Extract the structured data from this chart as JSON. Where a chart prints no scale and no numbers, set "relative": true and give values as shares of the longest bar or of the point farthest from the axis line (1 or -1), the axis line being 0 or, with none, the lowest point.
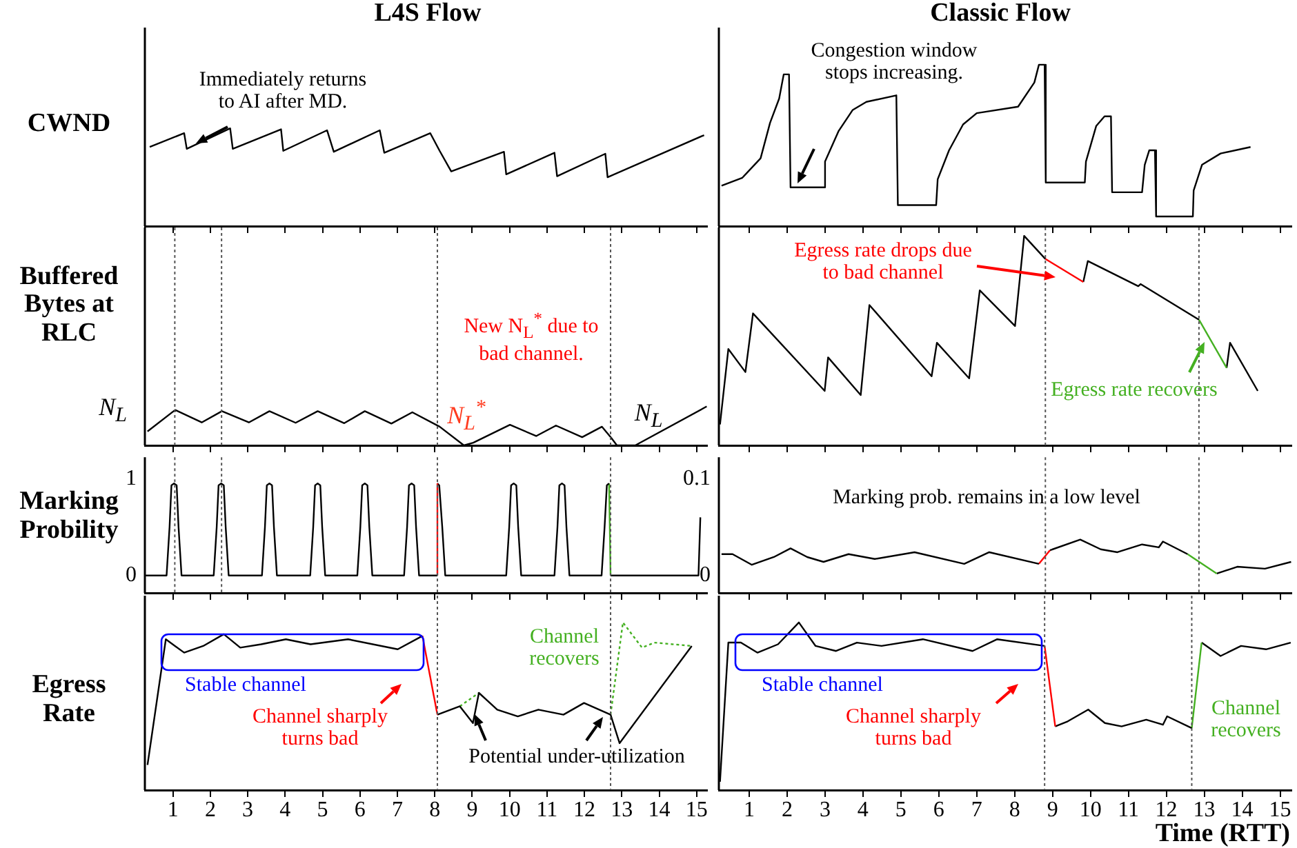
{
  "chart_data": [
    {
      "type": "line",
      "title": "L4S Flow",
      "ylabel": "CWND",
      "relative": true,
      "marker": "none",
      "tick_labels": false,
      "xlim": [
        0.25,
        15.3
      ],
      "xticks": [
        1,
        2,
        3,
        4,
        5,
        6,
        7,
        8,
        9,
        10,
        11,
        12,
        13,
        14,
        15
      ],
      "annotations": [
        "Immediately returns to AI  after MD."
      ],
      "series": [
        {
          "color": "#000000",
          "x": [
            0.38,
            1.3,
            1.37,
            2.53,
            2.6,
            3.89,
            3.95,
            5.12,
            5.3,
            6.53,
            6.65,
            7.88,
            8.13,
            8.44,
            9.85,
            9.91,
            11.2,
            11.27,
            12.56,
            12.62,
            15.2
          ],
          "values": [
            0.81,
            0.95,
            0.79,
            1.0,
            0.79,
            0.99,
            0.77,
            0.98,
            0.76,
            0.98,
            0.75,
            0.95,
            0.77,
            0.56,
            0.76,
            0.53,
            0.75,
            0.51,
            0.74,
            0.5,
            0.93
          ]
        }
      ]
    },
    {
      "type": "line",
      "title": "Classic Flow",
      "relative": true,
      "marker": "none",
      "tick_labels": false,
      "xlim": [
        0.2,
        15.3
      ],
      "xticks": [
        1,
        2,
        3,
        4,
        5,
        6,
        7,
        8,
        9,
        10,
        11,
        12,
        13,
        14,
        15
      ],
      "annotations": [
        "Congestion window stops increasing."
      ],
      "series": [
        {
          "color": "#000000",
          "x": [
            0.27,
            0.82,
            1.3,
            1.55,
            1.79,
            1.91,
            2.05,
            2.09,
            2.97,
            3.0,
            3.36,
            3.73,
            4.09,
            4.88,
            4.92,
            5.93,
            5.97,
            6.27,
            6.64,
            7.0,
            8.09,
            8.52,
            8.64,
            8.79,
            8.82,
            9.85,
            9.88,
            10.15,
            10.37,
            10.54,
            10.57,
            11.36,
            11.43,
            11.55,
            11.7,
            11.73,
            12.7,
            12.72,
            12.94,
            13.43,
            14.22
          ],
          "values": [
            0.25,
            0.3,
            0.42,
            0.64,
            0.79,
            0.94,
            0.94,
            0.24,
            0.24,
            0.4,
            0.59,
            0.72,
            0.77,
            0.81,
            0.13,
            0.13,
            0.29,
            0.47,
            0.63,
            0.7,
            0.74,
            0.89,
            1.0,
            1.0,
            0.27,
            0.27,
            0.4,
            0.62,
            0.68,
            0.68,
            0.21,
            0.21,
            0.38,
            0.47,
            0.47,
            0.06,
            0.06,
            0.22,
            0.38,
            0.45,
            0.49
          ]
        }
      ]
    },
    {
      "type": "line",
      "ylabel": "Buffered Bytes at RLC",
      "relative": true,
      "marker": "none",
      "tick_labels": false,
      "xlim": [
        0.25,
        15.3
      ],
      "xticks": [
        1,
        2,
        3,
        4,
        5,
        6,
        7,
        8,
        9,
        10,
        11,
        12,
        13,
        14,
        15
      ],
      "annotations": [
        "N$_{L}$",
        "New N$_{L}$$^{*}$ due to bad channel.",
        "N$_{L}$$^{*}$",
        "N$_{L}$"
      ],
      "ref_lines": [
        {
          "axis": "x",
          "value": 1.05,
          "color": "#555555",
          "line_style": "dotted"
        },
        {
          "axis": "x",
          "value": 2.3,
          "color": "#555555",
          "line_style": "dotted"
        },
        {
          "axis": "x",
          "value": 8.07,
          "color": "#555555",
          "line_style": "dotted"
        },
        {
          "axis": "x",
          "value": 12.7,
          "color": "#555555",
          "line_style": "dotted"
        }
      ],
      "series": [
        {
          "color": "#000000",
          "x": [
            0.32,
            1.06,
            1.77,
            2.31,
            3.03,
            3.58,
            4.28,
            4.87,
            5.58,
            6.13,
            6.84,
            7.4,
            8.13,
            8.78,
            9.03,
            10.01,
            10.71,
            11.24,
            11.94,
            12.47,
            12.72,
            12.87,
            13.36,
            15.27
          ],
          "values": [
            0.36,
            0.91,
            0.59,
            0.88,
            0.59,
            0.88,
            0.58,
            0.88,
            0.57,
            0.88,
            0.56,
            0.85,
            0.48,
            0,
            0.07,
            0.53,
            0.24,
            0.51,
            0.21,
            0.48,
            0.19,
            0,
            0,
            1.0
          ]
        }
      ]
    },
    {
      "type": "line",
      "relative": true,
      "marker": "none",
      "tick_labels": false,
      "xlim": [
        0.2,
        15.3
      ],
      "xticks": [
        1,
        2,
        3,
        4,
        5,
        6,
        7,
        8,
        9,
        10,
        11,
        12,
        13,
        14,
        15
      ],
      "annotations": [
        "Egress rate drops due to bad channel",
        "Egress rate recovers"
      ],
      "ref_lines": [
        {
          "axis": "x",
          "value": 8.81,
          "color": "#555555",
          "line_style": "dotted"
        },
        {
          "axis": "x",
          "value": 12.86,
          "color": "#555555",
          "line_style": "dotted"
        }
      ],
      "series": [
        {
          "color": "#000000",
          "x": [
            0.23,
            0.45,
            0.9,
            1.1,
            2.99,
            3.08,
            3.94,
            4.17,
            5.81,
            5.95,
            6.8,
            7.08,
            8.01,
            8.25,
            8.81
          ],
          "values": [
            0.1,
            0.46,
            0.35,
            0.63,
            0.26,
            0.42,
            0.24,
            0.67,
            0.33,
            0.49,
            0.32,
            0.74,
            0.57,
            1.0,
            0.89
          ]
        },
        {
          "color": "#ff0000",
          "x": [
            8.81,
            9.81
          ],
          "values": [
            0.89,
            0.78
          ]
        },
        {
          "color": "#000000",
          "x": [
            9.81,
            9.93,
            11.26,
            11.32,
            12.86
          ],
          "values": [
            0.78,
            0.88,
            0.76,
            0.77,
            0.6
          ]
        },
        {
          "color": "#44b021",
          "x": [
            12.86,
            13.59
          ],
          "values": [
            0.6,
            0.37
          ]
        },
        {
          "color": "#000000",
          "x": [
            13.59,
            13.68,
            14.41
          ],
          "values": [
            0.37,
            0.49,
            0.26
          ]
        }
      ]
    },
    {
      "type": "line",
      "ylabel": "Marking Probility",
      "marker": "none",
      "tick_labels": "y",
      "xlim": [
        0.25,
        15.3
      ],
      "xticks": [
        1,
        2,
        3,
        4,
        5,
        6,
        7,
        8,
        9,
        10,
        11,
        12,
        13,
        14,
        15
      ],
      "ylim": [
        -0.18,
        1.22
      ],
      "yticks": [
        0,
        1
      ],
      "ref_lines": [
        {
          "axis": "x",
          "value": 1.05,
          "color": "#555555",
          "line_style": "dotted"
        },
        {
          "axis": "x",
          "value": 2.3,
          "color": "#555555",
          "line_style": "dotted"
        },
        {
          "axis": "x",
          "value": 8.07,
          "color": "#555555",
          "line_style": "dotted"
        },
        {
          "axis": "x",
          "value": 12.7,
          "color": "#555555",
          "line_style": "dotted"
        }
      ],
      "series": [
        {
          "color": "#000000",
          "x": [
            0.27,
            0.83,
            0.91,
            0.96,
            1.03,
            1.1,
            1.15,
            1.23,
            2.09,
            2.17,
            2.22,
            2.29,
            2.36,
            2.41,
            2.49,
            3.38,
            3.46,
            3.51,
            3.58,
            3.65,
            3.7,
            3.78,
            4.67,
            4.75,
            4.8,
            4.87,
            4.94,
            4.99,
            5.07,
            5.93,
            6.01,
            6.06,
            6.13,
            6.2,
            6.25,
            6.33,
            7.18,
            7.26,
            7.31,
            7.38,
            7.45,
            7.5,
            7.58,
            8.07
          ],
          "values": [
            0,
            0,
            0.5,
            0.93,
            0.95,
            0.93,
            0.5,
            0,
            0,
            0.5,
            0.93,
            0.95,
            0.93,
            0.5,
            0,
            0,
            0.5,
            0.93,
            0.95,
            0.93,
            0.5,
            0,
            0,
            0.5,
            0.93,
            0.95,
            0.93,
            0.5,
            0,
            0,
            0.5,
            0.93,
            0.95,
            0.93,
            0.5,
            0,
            0,
            0.5,
            0.93,
            0.95,
            0.93,
            0.5,
            0,
            0
          ]
        },
        {
          "color": "#ff0000",
          "x": [
            8.07,
            8.07
          ],
          "values": [
            0,
            0.95
          ]
        },
        {
          "color": "#000000",
          "x": [
            8.07,
            8.12,
            8.2,
            8.28,
            9.91,
            9.99,
            10.04,
            10.11,
            10.18,
            10.23,
            10.31,
            11.2,
            11.28,
            11.33,
            11.4,
            11.47,
            11.52,
            11.6,
            12.46,
            12.54,
            12.6,
            12.66
          ],
          "values": [
            0.95,
            0.93,
            0.5,
            0,
            0,
            0.5,
            0.93,
            0.95,
            0.93,
            0.5,
            0,
            0,
            0.5,
            0.93,
            0.95,
            0.93,
            0.5,
            0,
            0,
            0.5,
            0.93,
            0.95
          ]
        },
        {
          "color": "#44b021",
          "x": [
            12.66,
            12.7
          ],
          "values": [
            0.95,
            0
          ]
        },
        {
          "color": "#000000",
          "x": [
            12.7,
            15.05,
            15.1
          ],
          "values": [
            0,
            0,
            0.6
          ]
        }
      ]
    },
    {
      "type": "line",
      "marker": "none",
      "tick_labels": "y",
      "xlim": [
        0.2,
        15.3
      ],
      "xticks": [
        1,
        2,
        3,
        4,
        5,
        6,
        7,
        8,
        9,
        10,
        11,
        12,
        13,
        14,
        15
      ],
      "ylim": [
        -0.018,
        0.122
      ],
      "yticks": [
        0,
        0.1
      ],
      "annotations": [
        "Marking prob. remains in a low level"
      ],
      "ref_lines": [
        {
          "axis": "x",
          "value": 8.81,
          "color": "#555555",
          "line_style": "dotted"
        },
        {
          "axis": "x",
          "value": 12.86,
          "color": "#555555",
          "line_style": "dotted"
        }
      ],
      "series": [
        {
          "color": "#000000",
          "x": [
            0.27,
            0.56,
            1.07,
            1.65,
            2.09,
            2.53,
            2.96,
            3.62,
            4.31,
            5.36,
            6.67,
            7.33,
            8.64
          ],
          "values": [
            0.022,
            0.022,
            0.011,
            0.019,
            0.028,
            0.019,
            0.014,
            0.022,
            0.017,
            0.024,
            0.012,
            0.024,
            0.012
          ]
        },
        {
          "color": "#ff0000",
          "x": [
            8.64,
            8.93
          ],
          "values": [
            0.012,
            0.026
          ]
        },
        {
          "color": "#000000",
          "x": [
            8.93,
            9.73,
            10.27,
            10.71,
            11.36,
            11.8,
            11.91,
            12.56
          ],
          "values": [
            0.026,
            0.037,
            0.027,
            0.024,
            0.032,
            0.029,
            0.035,
            0.022
          ]
        },
        {
          "color": "#44b021",
          "x": [
            12.56,
            13.33
          ],
          "values": [
            0.022,
            0.002
          ]
        },
        {
          "color": "#000000",
          "x": [
            13.33,
            13.87,
            14.6,
            15.29
          ],
          "values": [
            0.002,
            0.009,
            0.007,
            0.014
          ]
        }
      ]
    },
    {
      "type": "line",
      "ylabel": "Egress Rate",
      "relative": true,
      "marker": "none",
      "tick_labels": "x",
      "xlim": [
        0.25,
        15.3
      ],
      "xticks": [
        1,
        2,
        3,
        4,
        5,
        6,
        7,
        8,
        9,
        10,
        11,
        12,
        13,
        14,
        15
      ],
      "annotations": [
        "Stable channel",
        "Channel sharply turns bad",
        "Channel recovers",
        "Potential under-utilization"
      ],
      "ref_lines": [
        {
          "axis": "x",
          "value": 8.07,
          "color": "#555555",
          "line_style": "dotted"
        },
        {
          "axis": "x",
          "value": 12.7,
          "color": "#555555",
          "line_style": "dotted"
        }
      ],
      "series": [
        {
          "color": "#000000",
          "x": [
            0.32,
            0.81,
            1.3,
            1.81,
            2.36,
            2.8,
            3.36,
            4.02,
            4.68,
            5.68,
            7.01,
            7.67
          ],
          "values": [
            0.15,
            0.9,
            0.82,
            0.86,
            0.93,
            0.85,
            0.87,
            0.9,
            0.87,
            0.9,
            0.84,
            0.92
          ]
        },
        {
          "color": "#ff0000",
          "x": [
            7.67,
            8.07
          ],
          "values": [
            0.92,
            0.45
          ]
        },
        {
          "color": "#000000",
          "x": [
            8.07,
            8.67,
            9.02,
            9.18,
            9.67,
            10.22,
            10.77,
            11.44,
            11.99,
            12.7,
            12.94,
            14.87
          ],
          "values": [
            0.45,
            0.5,
            0.4,
            0.58,
            0.48,
            0.44,
            0.48,
            0.45,
            0.52,
            0.45,
            0.28,
            0.86
          ]
        },
        {
          "color": "#44b021",
          "line_style": "dotted",
          "x": [
            8.67,
            9.18
          ],
          "values": [
            0.5,
            0.58
          ]
        },
        {
          "color": "#44b021",
          "line_style": "dotted",
          "x": [
            12.7,
            13.03,
            13.54,
            13.87,
            14.87
          ],
          "values": [
            0.45,
            1.0,
            0.85,
            0.88,
            0.86
          ]
        }
      ]
    },
    {
      "type": "line",
      "xlabel": "Time (RTT)",
      "relative": true,
      "marker": "none",
      "tick_labels": "x",
      "xlim": [
        0.2,
        15.3
      ],
      "xticks": [
        1,
        2,
        3,
        4,
        5,
        6,
        7,
        8,
        9,
        10,
        11,
        12,
        13,
        14,
        15
      ],
      "annotations": [
        "Stable channel",
        "Channel sharply turns bad",
        "Channel recovers"
      ],
      "ref_lines": [
        {
          "axis": "x",
          "value": 8.79,
          "color": "#555555",
          "line_style": "dotted"
        },
        {
          "axis": "x",
          "value": 12.67,
          "color": "#555555",
          "line_style": "dotted"
        }
      ],
      "series": [
        {
          "color": "#000000",
          "x": [
            0.23,
            0.45,
            0.78,
            1.22,
            1.76,
            2.31,
            2.75,
            3.29,
            3.84,
            4.49,
            5.58,
            6.89,
            7.54,
            8.79
          ],
          "values": [
            0.05,
            0.88,
            0.88,
            0.82,
            0.87,
            1.0,
            0.86,
            0.83,
            0.88,
            0.86,
            0.9,
            0.83,
            0.9,
            0.86
          ]
        },
        {
          "color": "#ff0000",
          "x": [
            8.79,
            9.07
          ],
          "values": [
            0.86,
            0.38
          ]
        },
        {
          "color": "#000000",
          "x": [
            9.07,
            9.4,
            9.94,
            10.38,
            10.82,
            11.47,
            11.91,
            12.02,
            12.67
          ],
          "values": [
            0.38,
            0.41,
            0.48,
            0.4,
            0.38,
            0.42,
            0.39,
            0.44,
            0.37
          ]
        },
        {
          "color": "#44b021",
          "x": [
            12.67,
            12.93
          ],
          "values": [
            0.37,
            0.88
          ]
        },
        {
          "color": "#000000",
          "x": [
            12.93,
            13.43,
            13.97,
            14.63,
            15.28
          ],
          "values": [
            0.88,
            0.8,
            0.86,
            0.84,
            0.88
          ]
        }
      ]
    }
  ]
}
